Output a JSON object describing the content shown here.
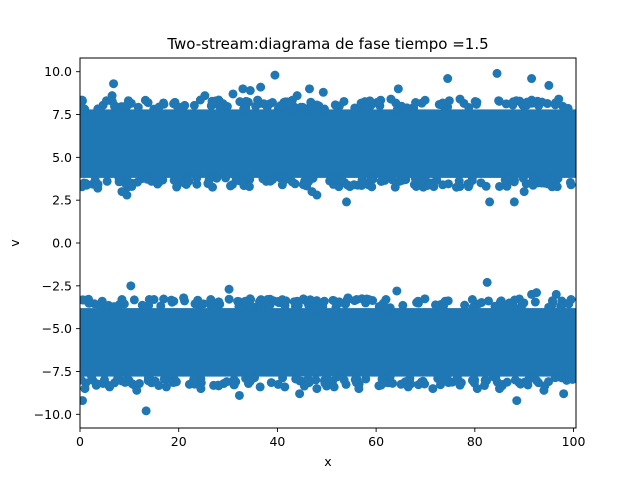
{
  "chart_data": {
    "type": "scatter",
    "title": "Two-stream:diagrama de fase  tiempo =1.5",
    "xlabel": "x",
    "ylabel": "v",
    "xlim": [
      0,
      100.5
    ],
    "ylim": [
      -10.8,
      10.8
    ],
    "x_ticks": [
      0,
      20,
      40,
      60,
      80,
      100
    ],
    "x_tick_labels": [
      "0",
      "20",
      "40",
      "60",
      "80",
      "100"
    ],
    "y_ticks": [
      -10.0,
      -7.5,
      -5.0,
      -2.5,
      0.0,
      2.5,
      5.0,
      7.5,
      10.0
    ],
    "y_tick_labels": [
      "−10.0",
      "−7.5",
      "−5.0",
      "−2.5",
      "0.0",
      "2.5",
      "5.0",
      "7.5",
      "10.0"
    ],
    "grid": false,
    "marker_color": "#1f77b4",
    "series": [
      {
        "points": [
          [
            0.5,
            8.3
          ],
          [
            0.8,
            3.5
          ],
          [
            3.6,
            3.2
          ],
          [
            5.5,
            3.6
          ],
          [
            6.8,
            9.3
          ],
          [
            6.5,
            8.6
          ],
          [
            8.5,
            3.0
          ],
          [
            9.5,
            2.8
          ],
          [
            10.5,
            3.3
          ],
          [
            14.5,
            3.6
          ],
          [
            17.0,
            8.1
          ],
          [
            21.2,
            3.5
          ],
          [
            25.3,
            8.6
          ],
          [
            27.5,
            8.3
          ],
          [
            29.5,
            3.8
          ],
          [
            31.0,
            8.7
          ],
          [
            33.0,
            9.0
          ],
          [
            34.5,
            8.9
          ],
          [
            36.6,
            9.1
          ],
          [
            39.5,
            9.8
          ],
          [
            41.0,
            3.4
          ],
          [
            42.5,
            8.1
          ],
          [
            44.0,
            8.6
          ],
          [
            45.5,
            3.6
          ],
          [
            46.5,
            9.0
          ],
          [
            47.0,
            3.0
          ],
          [
            48.0,
            2.8
          ],
          [
            49.3,
            8.8
          ],
          [
            51.5,
            3.8
          ],
          [
            54.0,
            2.4
          ],
          [
            55.5,
            3.4
          ],
          [
            57.5,
            3.5
          ],
          [
            61.0,
            3.6
          ],
          [
            63.0,
            8.4
          ],
          [
            64.5,
            9.0
          ],
          [
            66.0,
            3.7
          ],
          [
            68.0,
            8.2
          ],
          [
            71.0,
            3.5
          ],
          [
            73.5,
            3.4
          ],
          [
            74.5,
            9.6
          ],
          [
            77.0,
            8.4
          ],
          [
            79.5,
            3.8
          ],
          [
            83.0,
            2.4
          ],
          [
            84.5,
            9.9
          ],
          [
            85.0,
            3.3
          ],
          [
            87.0,
            3.8
          ],
          [
            88.0,
            2.4
          ],
          [
            90.0,
            3.0
          ],
          [
            91.5,
            9.6
          ],
          [
            94.0,
            3.8
          ],
          [
            95.0,
            9.2
          ],
          [
            97.0,
            8.4
          ],
          [
            99.5,
            3.4
          ],
          [
            60.5,
            8.2
          ],
          [
            39.0,
            8.2
          ],
          [
            22.0,
            3.6
          ],
          [
            53.0,
            3.7
          ]
        ]
      },
      {
        "points": [
          [
            0.5,
            -9.2
          ],
          [
            1.0,
            -8.5
          ],
          [
            4.5,
            -3.4
          ],
          [
            8.5,
            -3.3
          ],
          [
            10.3,
            -2.5
          ],
          [
            11.5,
            -8.6
          ],
          [
            13.4,
            -9.8
          ],
          [
            15.0,
            -3.3
          ],
          [
            17.5,
            -8.4
          ],
          [
            19.0,
            -3.4
          ],
          [
            21.0,
            -3.2
          ],
          [
            24.5,
            -8.5
          ],
          [
            26.5,
            -3.3
          ],
          [
            30.2,
            -2.7
          ],
          [
            32.3,
            -8.9
          ],
          [
            33.5,
            -3.4
          ],
          [
            36.5,
            -8.4
          ],
          [
            38.0,
            -3.3
          ],
          [
            41.5,
            -8.4
          ],
          [
            44.0,
            -3.4
          ],
          [
            44.5,
            -8.8
          ],
          [
            48.0,
            -8.5
          ],
          [
            49.5,
            -3.4
          ],
          [
            51.5,
            -8.4
          ],
          [
            54.3,
            -3.2
          ],
          [
            56.5,
            -8.5
          ],
          [
            58.5,
            -3.3
          ],
          [
            62.0,
            -3.3
          ],
          [
            64.2,
            -2.8
          ],
          [
            66.5,
            -8.4
          ],
          [
            68.5,
            -3.4
          ],
          [
            71.5,
            -8.5
          ],
          [
            74.0,
            -3.4
          ],
          [
            77.0,
            -8.3
          ],
          [
            79.5,
            -3.3
          ],
          [
            82.5,
            -2.3
          ],
          [
            85.0,
            -8.5
          ],
          [
            87.0,
            -3.5
          ],
          [
            88.5,
            -9.2
          ],
          [
            91.5,
            -3.0
          ],
          [
            92.5,
            -2.9
          ],
          [
            94.0,
            -8.6
          ],
          [
            96.5,
            -3.0
          ],
          [
            98.0,
            -8.8
          ],
          [
            99.5,
            -3.3
          ],
          [
            61.0,
            -8.3
          ],
          [
            28.0,
            -8.3
          ],
          [
            6.0,
            -8.4
          ],
          [
            52.5,
            -3.5
          ],
          [
            80.5,
            -8.5
          ]
        ]
      }
    ]
  }
}
